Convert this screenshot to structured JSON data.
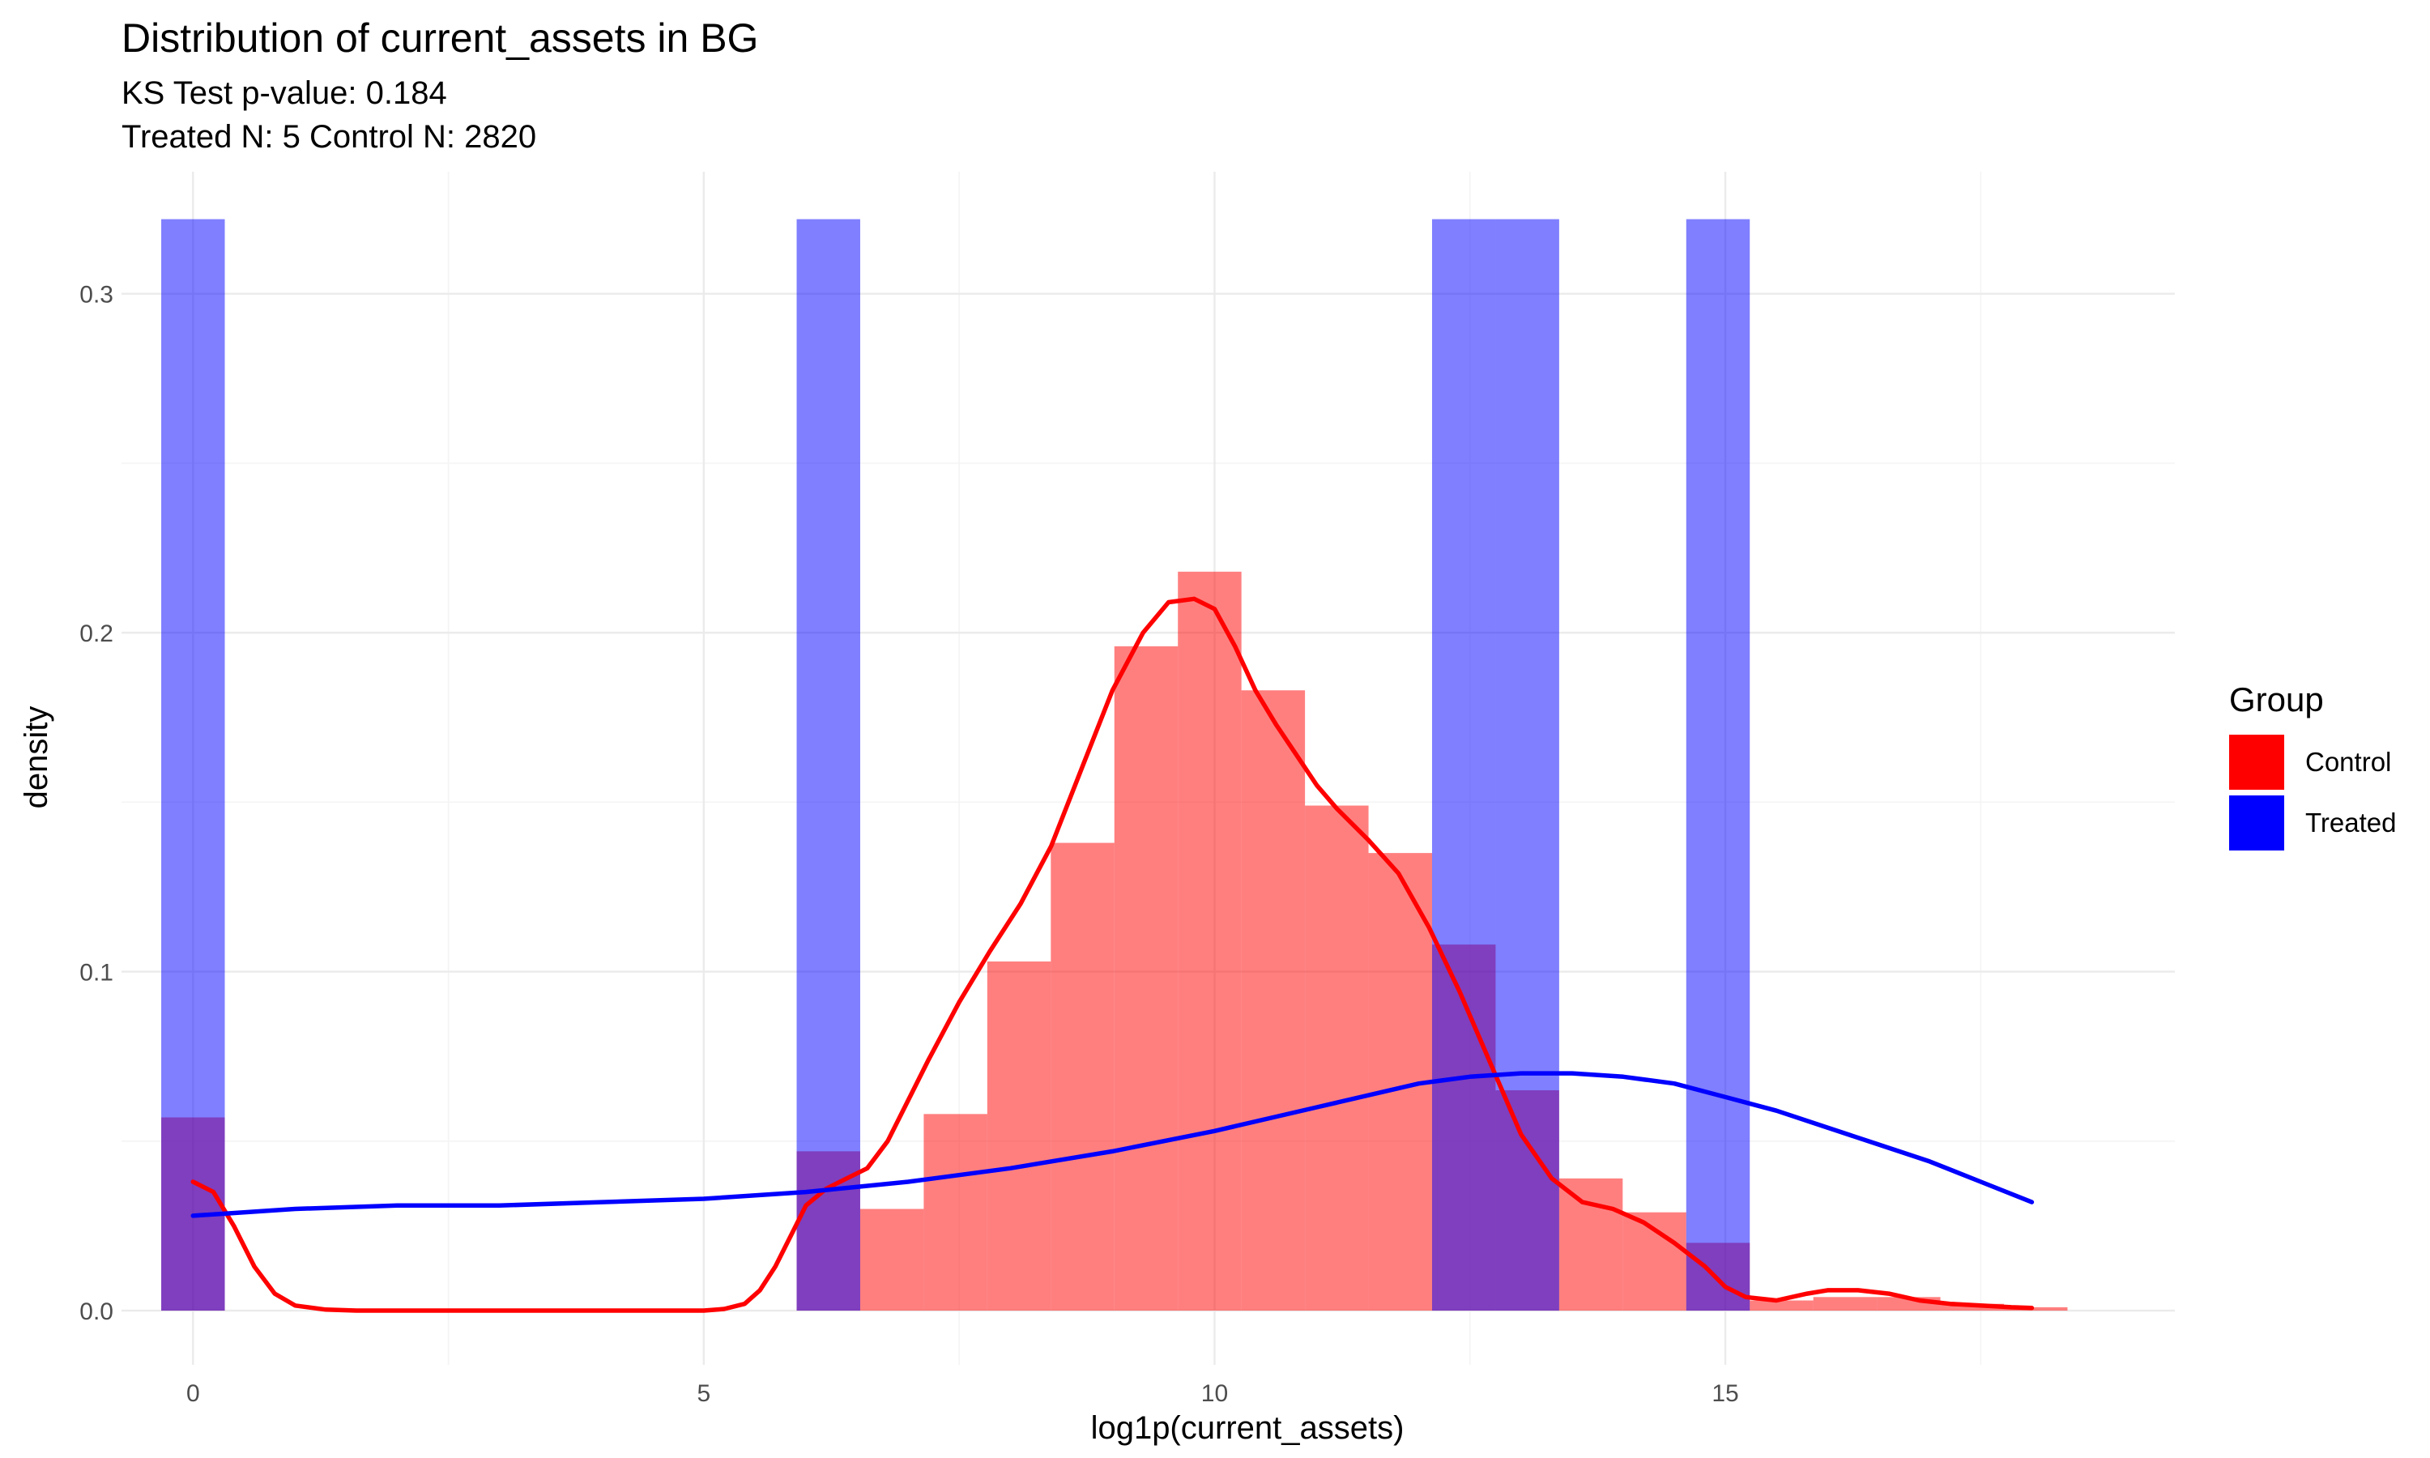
{
  "chart_data": {
    "type": "histogram",
    "title": "Distribution of current_assets in BG",
    "subtitle_lines": [
      "KS Test p-value: 0.184",
      "Treated N: 5 Control N: 2820"
    ],
    "xlabel": "log1p(current_assets)",
    "ylabel": "density",
    "xlim": [
      -0.7,
      19.4
    ],
    "ylim": [
      -0.016,
      0.336
    ],
    "x_ticks": [
      0,
      5,
      10,
      15
    ],
    "y_ticks": [
      0.0,
      0.1,
      0.2,
      0.3
    ],
    "x_tick_labels": [
      "0",
      "5",
      "10",
      "15"
    ],
    "y_tick_labels": [
      "0.0",
      "0.1",
      "0.2",
      "0.3"
    ],
    "grid": true,
    "legend": {
      "title": "Group",
      "position": "right",
      "entries": [
        {
          "name": "Control",
          "color": "#ff0000"
        },
        {
          "name": "Treated",
          "color": "#0000ff"
        }
      ]
    },
    "bin_width": 0.622,
    "series": [
      {
        "name": "Control",
        "color": "#ff0000",
        "opacity": 0.5,
        "bins": [
          {
            "x0": -0.311,
            "x1": 0.311,
            "y": 0.057
          },
          {
            "x0": 5.909,
            "x1": 6.531,
            "y": 0.047
          },
          {
            "x0": 6.531,
            "x1": 7.153,
            "y": 0.03
          },
          {
            "x0": 7.153,
            "x1": 7.775,
            "y": 0.058
          },
          {
            "x0": 7.775,
            "x1": 8.397,
            "y": 0.103
          },
          {
            "x0": 8.397,
            "x1": 9.019,
            "y": 0.138
          },
          {
            "x0": 9.019,
            "x1": 9.641,
            "y": 0.196
          },
          {
            "x0": 9.641,
            "x1": 10.263,
            "y": 0.218
          },
          {
            "x0": 10.263,
            "x1": 10.885,
            "y": 0.183
          },
          {
            "x0": 10.885,
            "x1": 11.507,
            "y": 0.149
          },
          {
            "x0": 11.507,
            "x1": 12.129,
            "y": 0.135
          },
          {
            "x0": 12.129,
            "x1": 12.751,
            "y": 0.108
          },
          {
            "x0": 12.751,
            "x1": 13.373,
            "y": 0.065
          },
          {
            "x0": 13.373,
            "x1": 13.995,
            "y": 0.039
          },
          {
            "x0": 13.995,
            "x1": 14.617,
            "y": 0.029
          },
          {
            "x0": 14.617,
            "x1": 15.239,
            "y": 0.02
          },
          {
            "x0": 15.239,
            "x1": 15.861,
            "y": 0.003
          },
          {
            "x0": 15.861,
            "x1": 16.483,
            "y": 0.004
          },
          {
            "x0": 16.483,
            "x1": 17.105,
            "y": 0.004
          },
          {
            "x0": 17.105,
            "x1": 17.727,
            "y": 0.002
          },
          {
            "x0": 17.727,
            "x1": 18.349,
            "y": 0.001
          }
        ],
        "density_curve": {
          "x": [
            0.0,
            0.2,
            0.4,
            0.6,
            0.8,
            1.0,
            1.3,
            1.6,
            2.0,
            3.0,
            4.0,
            5.0,
            5.2,
            5.4,
            5.55,
            5.7,
            5.85,
            6.0,
            6.2,
            6.4,
            6.6,
            6.8,
            7.0,
            7.2,
            7.5,
            7.8,
            8.1,
            8.4,
            8.7,
            9.0,
            9.3,
            9.55,
            9.8,
            10.0,
            10.2,
            10.4,
            10.6,
            10.8,
            11.0,
            11.2,
            11.5,
            11.8,
            12.1,
            12.4,
            12.7,
            13.0,
            13.3,
            13.6,
            13.9,
            14.2,
            14.5,
            14.8,
            15.0,
            15.2,
            15.5,
            15.8,
            16.0,
            16.3,
            16.6,
            16.9,
            17.2,
            17.5,
            17.8,
            18.0
          ],
          "y": [
            0.038,
            0.035,
            0.025,
            0.013,
            0.005,
            0.0015,
            0.0003,
            0.0,
            0.0,
            0.0,
            0.0,
            0.0,
            0.0005,
            0.002,
            0.006,
            0.013,
            0.022,
            0.031,
            0.036,
            0.039,
            0.042,
            0.05,
            0.062,
            0.074,
            0.091,
            0.106,
            0.12,
            0.137,
            0.16,
            0.183,
            0.2,
            0.209,
            0.21,
            0.207,
            0.196,
            0.183,
            0.173,
            0.164,
            0.155,
            0.148,
            0.139,
            0.129,
            0.113,
            0.094,
            0.073,
            0.052,
            0.039,
            0.032,
            0.03,
            0.026,
            0.02,
            0.013,
            0.007,
            0.004,
            0.003,
            0.005,
            0.006,
            0.006,
            0.005,
            0.003,
            0.002,
            0.0015,
            0.001,
            0.0008
          ]
        }
      },
      {
        "name": "Treated",
        "color": "#0000ff",
        "opacity": 0.5,
        "bins": [
          {
            "x0": -0.311,
            "x1": 0.311,
            "y": 0.322
          },
          {
            "x0": 5.909,
            "x1": 6.531,
            "y": 0.322
          },
          {
            "x0": 12.129,
            "x1": 12.751,
            "y": 0.322
          },
          {
            "x0": 12.751,
            "x1": 13.373,
            "y": 0.322
          },
          {
            "x0": 14.617,
            "x1": 15.239,
            "y": 0.322
          }
        ],
        "density_curve": {
          "x": [
            0.0,
            1.0,
            2.0,
            3.0,
            4.0,
            5.0,
            6.0,
            7.0,
            8.0,
            9.0,
            10.0,
            11.0,
            12.0,
            12.5,
            13.0,
            13.5,
            14.0,
            14.5,
            15.0,
            15.5,
            16.0,
            16.5,
            17.0,
            17.5,
            18.0
          ],
          "y": [
            0.028,
            0.03,
            0.031,
            0.031,
            0.032,
            0.033,
            0.035,
            0.038,
            0.042,
            0.047,
            0.053,
            0.06,
            0.067,
            0.069,
            0.07,
            0.07,
            0.069,
            0.067,
            0.063,
            0.059,
            0.054,
            0.049,
            0.044,
            0.038,
            0.032
          ]
        }
      }
    ]
  }
}
